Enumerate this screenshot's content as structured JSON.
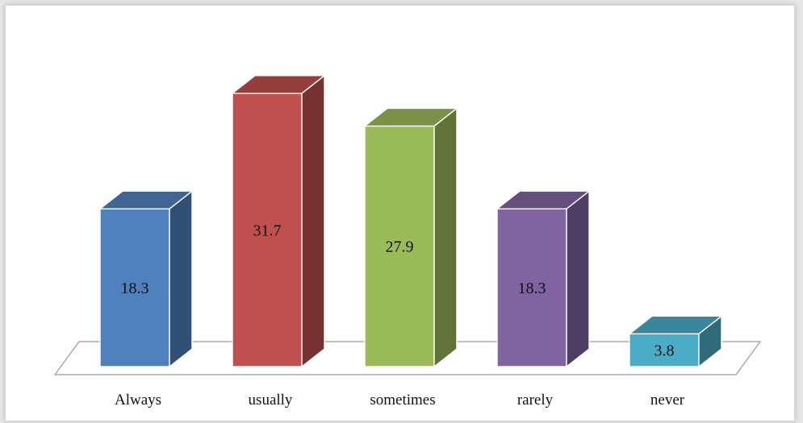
{
  "chart_data": {
    "type": "bar",
    "style": "3d-column",
    "categories": [
      "Always",
      "usually",
      "sometimes",
      "rarely",
      "never"
    ],
    "values": [
      18.3,
      31.7,
      27.9,
      18.3,
      3.8
    ],
    "data_labels": [
      "18.3",
      "31.7",
      "27.9",
      "18.3",
      "3.8"
    ],
    "colors": [
      "#4f81bd",
      "#c0504d",
      "#9bbb59",
      "#8064a2",
      "#4bacc6"
    ],
    "title": "",
    "xlabel": "",
    "ylabel": "",
    "grid": false,
    "legend": "none"
  }
}
